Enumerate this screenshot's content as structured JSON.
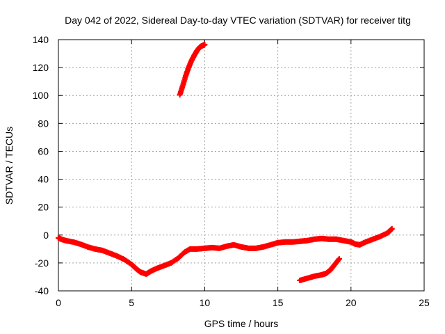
{
  "chart_data": {
    "type": "scatter",
    "title": "Day 042 of 2022, Sidereal Day-to-day VTEC variation (SDTVAR) for receiver titg",
    "xlabel": "GPS time / hours",
    "ylabel": "SDTVAR / TECUs",
    "xlim": [
      0,
      25
    ],
    "ylim": [
      -40,
      140
    ],
    "grid": true,
    "x_ticks": [
      0,
      5,
      10,
      15,
      20,
      25
    ],
    "x_tick_labels": [
      "0",
      "5",
      "10",
      "15",
      "20",
      "25"
    ],
    "y_ticks": [
      -40,
      -20,
      0,
      20,
      40,
      60,
      80,
      100,
      120,
      140
    ],
    "y_tick_labels": [
      "-40",
      "-20",
      "0",
      "20",
      "40",
      "60",
      "80",
      "100",
      "120",
      "140"
    ],
    "marker": "+",
    "color": "#ff0000",
    "series": [
      {
        "name": "main",
        "points": [
          [
            0,
            -2
          ],
          [
            0.2,
            -3
          ],
          [
            0.5,
            -4
          ],
          [
            1.0,
            -5
          ],
          [
            1.5,
            -6.5
          ],
          [
            2.0,
            -8.5
          ],
          [
            2.5,
            -10
          ],
          [
            3.0,
            -11
          ],
          [
            3.5,
            -13
          ],
          [
            4.0,
            -15
          ],
          [
            4.5,
            -17.5
          ],
          [
            5.0,
            -21
          ],
          [
            5.3,
            -24
          ],
          [
            5.6,
            -26.5
          ],
          [
            6.0,
            -28
          ],
          [
            6.3,
            -26
          ],
          [
            6.7,
            -24
          ],
          [
            7.2,
            -22
          ],
          [
            7.7,
            -20
          ],
          [
            8.2,
            -16.5
          ],
          [
            8.6,
            -12.5
          ],
          [
            9.0,
            -10
          ],
          [
            9.5,
            -10
          ],
          [
            10.0,
            -9.5
          ],
          [
            10.5,
            -9
          ],
          [
            11.0,
            -9.5
          ],
          [
            11.5,
            -8
          ],
          [
            12.0,
            -7
          ],
          [
            12.5,
            -8.5
          ],
          [
            13.0,
            -9.5
          ],
          [
            13.5,
            -9.5
          ],
          [
            14.0,
            -8.5
          ],
          [
            14.5,
            -7
          ],
          [
            15.0,
            -5.5
          ],
          [
            15.5,
            -5
          ],
          [
            16.0,
            -5
          ],
          [
            16.5,
            -4.5
          ],
          [
            17.0,
            -4
          ],
          [
            17.5,
            -3
          ],
          [
            18.0,
            -2.5
          ],
          [
            18.5,
            -3
          ],
          [
            19.0,
            -3
          ],
          [
            19.5,
            -4
          ],
          [
            20.0,
            -5
          ],
          [
            20.3,
            -6.5
          ],
          [
            20.6,
            -7
          ],
          [
            21.0,
            -5
          ],
          [
            21.5,
            -3
          ],
          [
            22.0,
            -1
          ],
          [
            22.5,
            1.5
          ],
          [
            22.8,
            4.5
          ]
        ]
      },
      {
        "name": "upper-arc",
        "points": [
          [
            8.3,
            100.5
          ],
          [
            8.5,
            107
          ],
          [
            8.7,
            114
          ],
          [
            8.9,
            120
          ],
          [
            9.1,
            125
          ],
          [
            9.3,
            129
          ],
          [
            9.5,
            132.5
          ],
          [
            9.7,
            135
          ],
          [
            9.9,
            136
          ],
          [
            10.0,
            136.5
          ]
        ]
      },
      {
        "name": "lower-arc",
        "points": [
          [
            16.5,
            -32.5
          ],
          [
            17.0,
            -31
          ],
          [
            17.5,
            -29.5
          ],
          [
            18.0,
            -28.5
          ],
          [
            18.3,
            -27.5
          ],
          [
            18.6,
            -25
          ],
          [
            18.9,
            -21
          ],
          [
            19.2,
            -17
          ]
        ]
      }
    ]
  }
}
